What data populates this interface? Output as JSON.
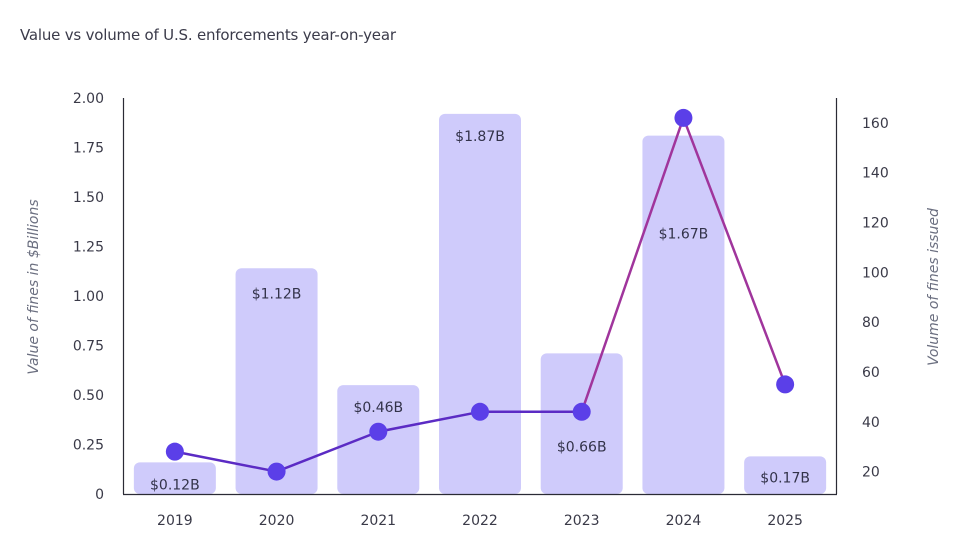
{
  "chart_data": {
    "type": "bar",
    "title": "Value vs volume of U.S. enforcements year-on-year",
    "categories": [
      "2019",
      "2020",
      "2021",
      "2022",
      "2023",
      "2024",
      "2025"
    ],
    "series": [
      {
        "name": "Value of fines ($Billions)",
        "type": "bar",
        "axis": "left",
        "values": [
          0.12,
          1.12,
          0.46,
          1.87,
          0.66,
          1.67,
          0.17
        ],
        "display_values": [
          0.16,
          1.14,
          0.55,
          1.92,
          0.71,
          1.81,
          0.19
        ],
        "labels": [
          "$0.12B",
          "$1.12B",
          "$0.46B",
          "$1.87B",
          "$0.66B",
          "$1.67B",
          "$0.17B"
        ],
        "color": "#cfcbfb"
      },
      {
        "name": "Volume of fines issued",
        "type": "line",
        "axis": "right",
        "values": [
          28,
          20,
          36,
          44,
          44,
          162,
          55
        ],
        "line_colors": [
          "#5b2bc4",
          "#5b2bc4",
          "#5b2bc4",
          "#5b2bc4",
          "#a0359c",
          "#a0359c"
        ],
        "marker_color": "#5b3fe8"
      }
    ],
    "ylabel": "Value of fines in $Billions",
    "ylim": [
      0,
      2.0
    ],
    "yticks": [
      "0",
      "0.25",
      "0.50",
      "0.75",
      "1.00",
      "1.25",
      "1.50",
      "1.75",
      "2.00"
    ],
    "y2label": "Volume of fines issued",
    "y2lim": [
      11,
      170
    ],
    "y2ticks": [
      20,
      40,
      60,
      80,
      100,
      120,
      140,
      160
    ],
    "grid": false,
    "legend": "none"
  }
}
